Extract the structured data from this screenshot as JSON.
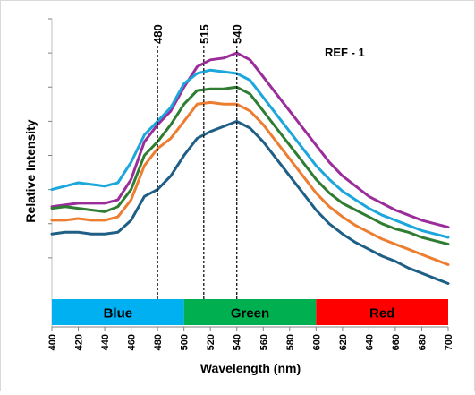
{
  "chart_data": {
    "type": "line",
    "title": "",
    "annotation": "REF - 1",
    "xlabel": "Wavelength (nm)",
    "ylabel": "Relative Intensity",
    "xlim": [
      400,
      700
    ],
    "xticks": [
      "400",
      "420",
      "440",
      "460",
      "480",
      "500",
      "520",
      "540",
      "560",
      "580",
      "600",
      "620",
      "640",
      "660",
      "680",
      "700"
    ],
    "ylim": [
      0,
      8
    ],
    "grid": false,
    "legend": "none",
    "vlines": [
      {
        "x": 480,
        "label": "480"
      },
      {
        "x": 515,
        "label": "515"
      },
      {
        "x": 540,
        "label": "540"
      }
    ],
    "bands": [
      {
        "label": "Blue",
        "from": 400,
        "to": 500,
        "color": "#00b0f0"
      },
      {
        "label": "Green",
        "from": 500,
        "to": 600,
        "color": "#00b050"
      },
      {
        "label": "Red",
        "from": 600,
        "to": 700,
        "color": "#ff0000"
      }
    ],
    "series": [
      {
        "color": "#9b2d9b",
        "x": [
          400,
          410,
          420,
          430,
          440,
          450,
          460,
          470,
          480,
          490,
          500,
          510,
          520,
          530,
          540,
          550,
          560,
          570,
          580,
          590,
          600,
          610,
          620,
          630,
          640,
          650,
          660,
          670,
          680,
          690,
          700
        ],
        "values": [
          2.5,
          2.55,
          2.6,
          2.6,
          2.6,
          2.7,
          3.3,
          4.4,
          4.9,
          5.3,
          6.0,
          6.6,
          6.8,
          6.85,
          7.0,
          6.8,
          6.3,
          5.8,
          5.3,
          4.8,
          4.3,
          3.8,
          3.4,
          3.1,
          2.8,
          2.6,
          2.4,
          2.25,
          2.1,
          2.0,
          1.9
        ]
      },
      {
        "color": "#1ba6dc",
        "x": [
          400,
          410,
          420,
          430,
          440,
          450,
          460,
          470,
          480,
          490,
          500,
          510,
          520,
          530,
          540,
          550,
          560,
          570,
          580,
          590,
          600,
          610,
          620,
          630,
          640,
          650,
          660,
          670,
          680,
          690,
          700
        ],
        "values": [
          3.0,
          3.1,
          3.2,
          3.15,
          3.1,
          3.2,
          3.8,
          4.6,
          5.0,
          5.4,
          6.1,
          6.4,
          6.5,
          6.45,
          6.4,
          6.2,
          5.7,
          5.2,
          4.7,
          4.2,
          3.7,
          3.3,
          2.95,
          2.7,
          2.45,
          2.25,
          2.1,
          1.95,
          1.8,
          1.7,
          1.6
        ]
      },
      {
        "color": "#2e7d32",
        "x": [
          400,
          410,
          420,
          430,
          440,
          450,
          460,
          470,
          480,
          490,
          500,
          510,
          520,
          530,
          540,
          550,
          560,
          570,
          580,
          590,
          600,
          610,
          620,
          630,
          640,
          650,
          660,
          670,
          680,
          690,
          700
        ],
        "values": [
          2.45,
          2.5,
          2.45,
          2.4,
          2.35,
          2.5,
          3.0,
          4.0,
          4.4,
          4.9,
          5.5,
          5.9,
          5.95,
          5.95,
          6.0,
          5.8,
          5.3,
          4.8,
          4.3,
          3.8,
          3.3,
          2.9,
          2.6,
          2.4,
          2.2,
          2.0,
          1.85,
          1.75,
          1.6,
          1.5,
          1.4
        ]
      },
      {
        "color": "#ed7d31",
        "x": [
          400,
          410,
          420,
          430,
          440,
          450,
          460,
          470,
          480,
          490,
          500,
          510,
          520,
          530,
          540,
          550,
          560,
          570,
          580,
          590,
          600,
          610,
          620,
          630,
          640,
          650,
          660,
          670,
          680,
          690,
          700
        ],
        "values": [
          2.1,
          2.1,
          2.15,
          2.1,
          2.1,
          2.2,
          2.7,
          3.7,
          4.2,
          4.5,
          5.0,
          5.5,
          5.55,
          5.5,
          5.5,
          5.3,
          4.9,
          4.4,
          3.9,
          3.4,
          2.9,
          2.5,
          2.2,
          1.95,
          1.75,
          1.55,
          1.4,
          1.25,
          1.1,
          0.95,
          0.8
        ]
      },
      {
        "color": "#1f5f86",
        "x": [
          400,
          410,
          420,
          430,
          440,
          450,
          460,
          470,
          480,
          490,
          500,
          510,
          520,
          530,
          540,
          550,
          560,
          570,
          580,
          590,
          600,
          610,
          620,
          630,
          640,
          650,
          660,
          670,
          680,
          690,
          700
        ],
        "values": [
          1.7,
          1.75,
          1.75,
          1.7,
          1.7,
          1.75,
          2.1,
          2.8,
          3.0,
          3.4,
          4.0,
          4.5,
          4.7,
          4.85,
          5.0,
          4.8,
          4.4,
          3.9,
          3.4,
          2.9,
          2.4,
          2.0,
          1.7,
          1.45,
          1.25,
          1.05,
          0.9,
          0.7,
          0.55,
          0.4,
          0.25
        ]
      }
    ]
  }
}
